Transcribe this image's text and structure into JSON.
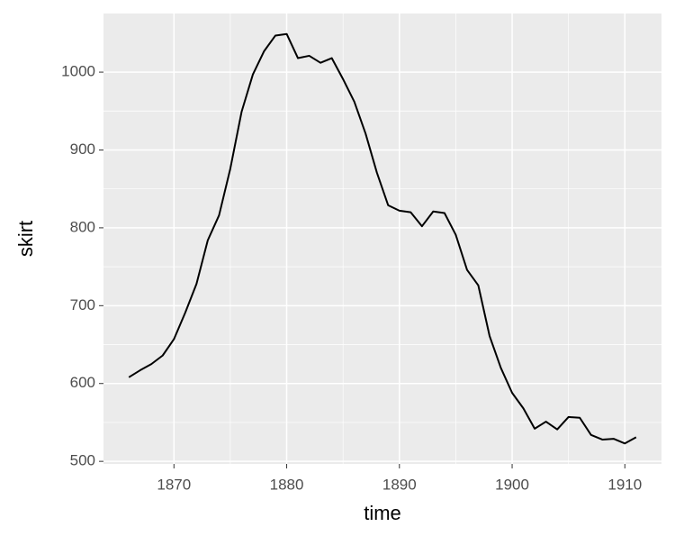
{
  "chart_data": {
    "type": "line",
    "x_label": "time",
    "y_label": "skirt",
    "x": [
      1866,
      1867,
      1868,
      1869,
      1870,
      1871,
      1872,
      1873,
      1874,
      1875,
      1876,
      1877,
      1878,
      1879,
      1880,
      1881,
      1882,
      1883,
      1884,
      1885,
      1886,
      1887,
      1888,
      1889,
      1890,
      1891,
      1892,
      1893,
      1894,
      1895,
      1896,
      1897,
      1898,
      1899,
      1900,
      1901,
      1902,
      1903,
      1904,
      1905,
      1906,
      1907,
      1908,
      1909,
      1910,
      1911
    ],
    "series": [
      {
        "color": "#000000",
        "values": [
          608,
          617,
          625,
          636,
          657,
          691,
          728,
          784,
          816,
          876,
          949,
          997,
          1027,
          1047,
          1049,
          1018,
          1021,
          1012,
          1018,
          991,
          962,
          921,
          871,
          829,
          822,
          820,
          802,
          821,
          819,
          791,
          746,
          726,
          661,
          620,
          588,
          568,
          542,
          551,
          541,
          557,
          556,
          534,
          528,
          529,
          523,
          531
        ]
      }
    ],
    "xlim": [
      1863.75,
      1913.25
    ],
    "xticks": [
      1870,
      1880,
      1890,
      1900,
      1910
    ],
    "ylim": [
      496.7,
      1075.3
    ],
    "yticks": [
      500,
      600,
      700,
      800,
      900,
      1000
    ],
    "grid": true
  }
}
